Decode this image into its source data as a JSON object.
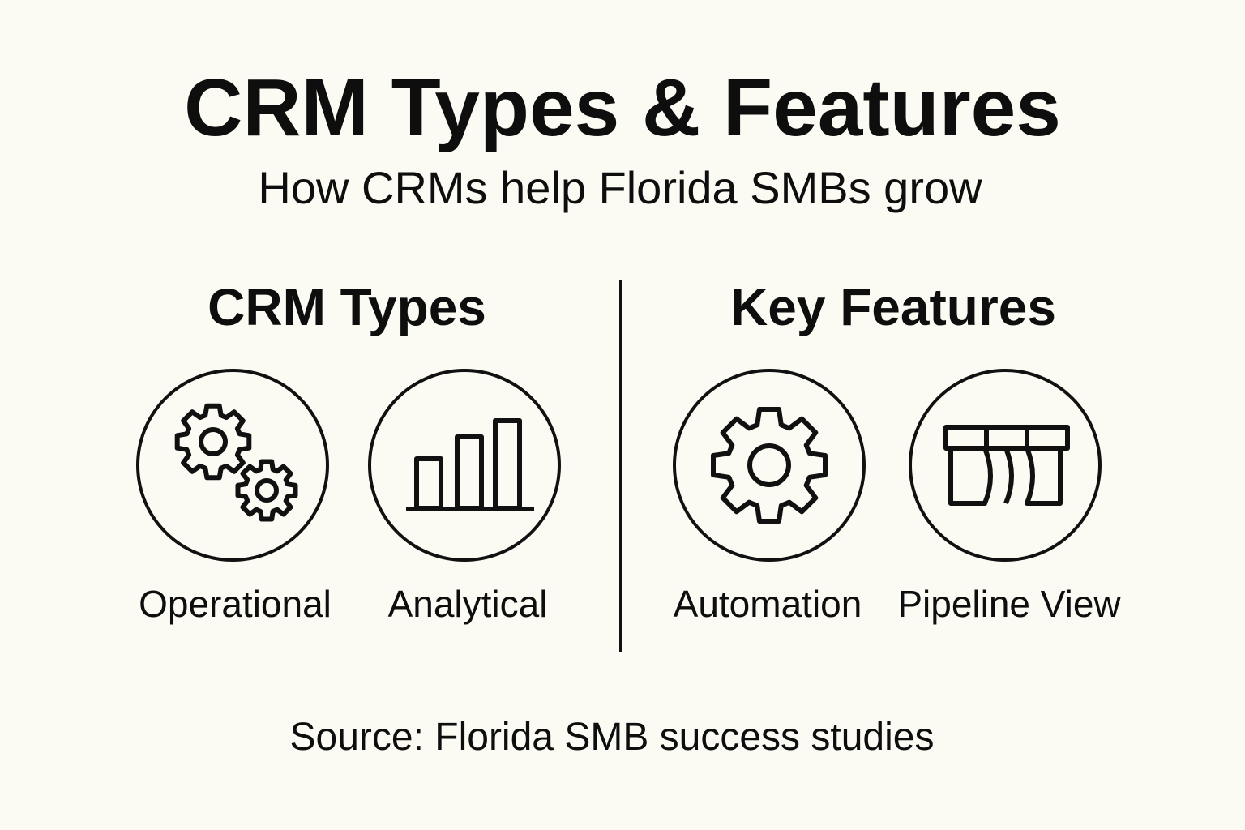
{
  "title": "CRM Types & Features",
  "subtitle": "How CRMs help Florida SMBs grow",
  "sections": [
    {
      "heading": "CRM Types",
      "items": [
        {
          "label": "Operational",
          "icon": "gears-icon"
        },
        {
          "label": "Analytical",
          "icon": "bar-chart-icon"
        }
      ]
    },
    {
      "heading": "Key Features",
      "items": [
        {
          "label": "Automation",
          "icon": "gear-icon"
        },
        {
          "label": "Pipeline View",
          "icon": "pipeline-board-icon"
        }
      ]
    }
  ],
  "source": "Source: Florida SMB success studies"
}
